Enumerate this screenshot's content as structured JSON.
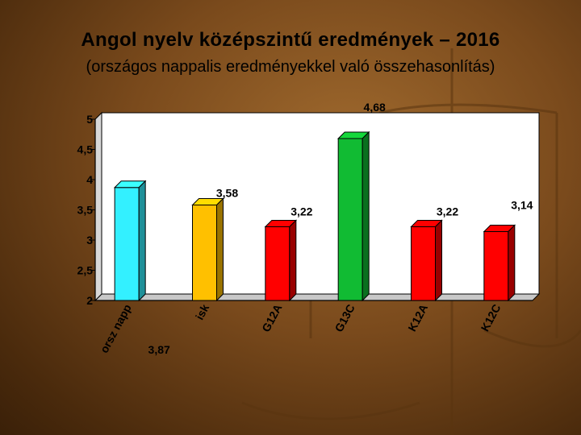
{
  "slide": {
    "title": "Angol nyelv középszintű eredmények – 2016",
    "subtitle": "(országos nappalis eredményekkel való összehasonlítás)"
  },
  "chart_data": {
    "type": "bar",
    "style": "3d",
    "categories": [
      "orsz napp",
      "isk",
      "G12A",
      "G13C",
      "K12A",
      "K12C"
    ],
    "values": [
      3.87,
      3.58,
      3.22,
      4.68,
      3.22,
      3.14
    ],
    "data_labels": [
      "3,87",
      "3,58",
      "3,22",
      "4,68",
      "3,22",
      "3,14"
    ],
    "colors": [
      "#33f0ff",
      "#ffc000",
      "#ff0000",
      "#11bb33",
      "#ff0000",
      "#ff0000"
    ],
    "ylim": [
      2,
      5
    ],
    "yticks": [
      2,
      2.5,
      3,
      3.5,
      4,
      4.5,
      5
    ],
    "ytick_labels": [
      "2",
      "2,5",
      "3",
      "3,5",
      "4",
      "4,5",
      "5"
    ],
    "grid": false,
    "legend": "none"
  }
}
